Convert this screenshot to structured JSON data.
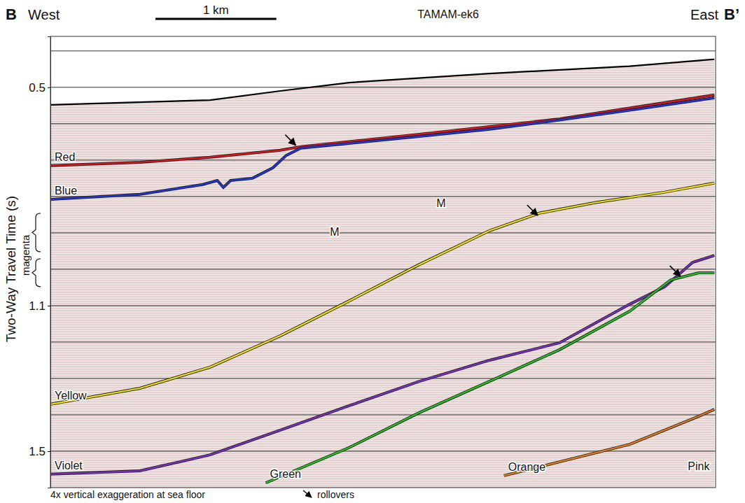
{
  "chart_data": {
    "type": "seismic-section",
    "header": {
      "letter": "B",
      "left": "West",
      "line": "TAMAM-ek6",
      "right": "East",
      "letter_end": "B’"
    },
    "y_label": "Two-Way Travel Time (s)",
    "xlim": [
      0,
      5.5
    ],
    "ylim": [
      0.36,
      1.6
    ],
    "yticks": [
      0.5,
      1.1,
      1.5
    ],
    "grid": true,
    "grid_lines": [
      0.4,
      0.5,
      0.6,
      0.7,
      0.8,
      0.9,
      1.0,
      1.1,
      1.2,
      1.3,
      1.4,
      1.5
    ],
    "tick_labels": "y",
    "scale_bar": {
      "value": 1,
      "label": "1 km"
    },
    "sea_floor": {
      "x": [
        0,
        1.32,
        1.9,
        2.47,
        3.63,
        4.79,
        5.49
      ],
      "values": [
        0.548,
        0.535,
        0.51,
        0.487,
        0.462,
        0.442,
        0.423
      ]
    },
    "series": [
      {
        "name": "Red",
        "color": "#e0141e",
        "x": [
          0,
          0.74,
          1.32,
          1.9,
          2.07,
          3.05,
          4.21,
          5.49
        ],
        "values": [
          0.715,
          0.706,
          0.692,
          0.673,
          0.663,
          0.629,
          0.587,
          0.521
        ]
      },
      {
        "name": "Blue",
        "color": "#1f35e0",
        "x": [
          0,
          0.74,
          1.26,
          1.38,
          1.43,
          1.49,
          1.67,
          1.84,
          1.95,
          2.07,
          2.47,
          3.05,
          3.63,
          4.21,
          4.79,
          5.49
        ],
        "values": [
          0.808,
          0.794,
          0.767,
          0.756,
          0.775,
          0.756,
          0.75,
          0.721,
          0.687,
          0.667,
          0.654,
          0.635,
          0.615,
          0.59,
          0.563,
          0.529
        ]
      },
      {
        "name": "Yellow",
        "color": "#f2e400",
        "x": [
          0,
          0.74,
          1.32,
          1.9,
          2.47,
          3.05,
          3.63,
          4.04,
          4.5,
          5.08,
          5.49
        ],
        "values": [
          1.371,
          1.327,
          1.269,
          1.183,
          1.087,
          0.987,
          0.894,
          0.846,
          0.817,
          0.788,
          0.763
        ]
      },
      {
        "name": "Violet",
        "color": "#7b2fc4",
        "x": [
          0,
          0.74,
          1.32,
          1.9,
          2.47,
          3.05,
          3.63,
          4.21,
          4.79,
          5.08,
          5.31,
          5.49
        ],
        "values": [
          1.563,
          1.554,
          1.51,
          1.442,
          1.375,
          1.308,
          1.25,
          1.202,
          1.096,
          1.048,
          0.981,
          0.962
        ]
      },
      {
        "name": "Green",
        "color": "#22c41e",
        "x": [
          1.78,
          2.47,
          3.05,
          3.63,
          4.21,
          4.79,
          5.13,
          5.36,
          5.49
        ],
        "values": [
          1.587,
          1.49,
          1.394,
          1.308,
          1.221,
          1.115,
          1.029,
          1.01,
          1.01
        ]
      },
      {
        "name": "Orange",
        "color": "#e07b1a",
        "x": [
          3.75,
          4.21,
          4.79,
          5.36,
          5.49
        ],
        "values": [
          1.567,
          1.529,
          1.481,
          1.404,
          1.385
        ]
      }
    ],
    "annotations": [
      {
        "text": "M",
        "x": 3.23,
        "y": 0.821
      },
      {
        "text": "M",
        "x": 2.35,
        "y": 0.9
      },
      {
        "text": "Pink",
        "x": 5.36,
        "y": 1.544
      }
    ],
    "magenta": {
      "text": "magenta",
      "ranges": [
        [
          0.846,
          0.952
        ],
        [
          0.971,
          1.048
        ]
      ]
    },
    "rollovers": {
      "label": "rollovers",
      "x": [
        2.04,
        4.04,
        5.22
      ],
      "values": [
        0.663,
        0.856,
        1.023
      ]
    },
    "footnote": "4x vertical exaggeration at sea floor"
  }
}
